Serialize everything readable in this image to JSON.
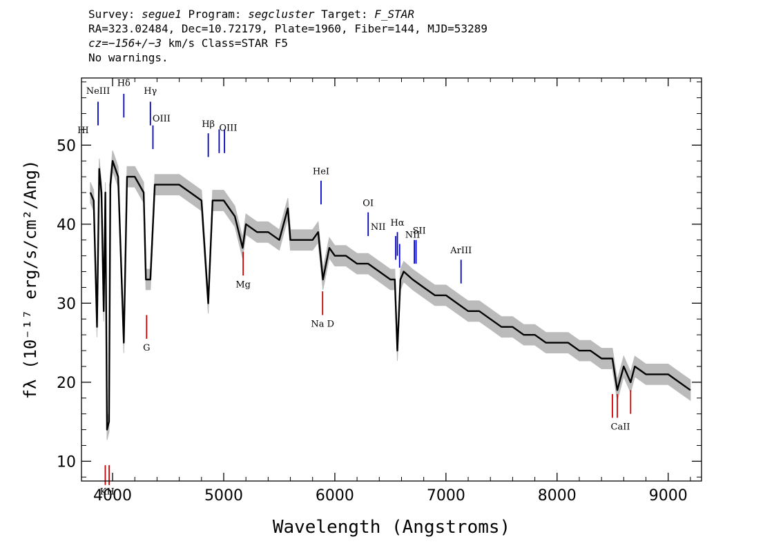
{
  "header": {
    "line1": {
      "survey_label": "Survey: ",
      "survey": "segue1",
      "program_label": " Program: ",
      "program": "segcluster",
      "target_label": " Target: ",
      "target": "F_STAR"
    },
    "line2": "RA=323.02484, Dec=10.72179, Plate=1960, Fiber=144, MJD=53289",
    "line3": {
      "cz_label": "cz=",
      "cz": "−156+/−3",
      "cz_units": " km/s Class=STAR F5"
    },
    "line4": "No warnings."
  },
  "colors": {
    "spectrum": "#000000",
    "error_band": "#bbbbbb",
    "emission_line": "#0000cc",
    "absorption_line": "#cc0000",
    "axes": "#000000"
  },
  "chart_data": {
    "type": "line",
    "title": "",
    "xlabel": "Wavelength (Angstroms)",
    "ylabel": "fλ (10⁻¹⁷ erg/s/cm²/Ang)",
    "xlim": [
      3720,
      9300
    ],
    "ylim": [
      7.5,
      58.5
    ],
    "x_ticks": [
      4000,
      5000,
      6000,
      7000,
      8000,
      9000
    ],
    "y_ticks": [
      10,
      20,
      30,
      40,
      50
    ],
    "grid": false,
    "series": [
      {
        "x": [
          3800,
          3830,
          3860,
          3880,
          3900,
          3920,
          3935,
          3950,
          3968,
          3980,
          4000,
          4050,
          4101,
          4130,
          4200,
          4280,
          4300,
          4340,
          4380,
          4450,
          4600,
          4700,
          4800,
          4861,
          4900,
          5000,
          5100,
          5170,
          5200,
          5300,
          5400,
          5500,
          5577,
          5600,
          5700,
          5800,
          5850,
          5893,
          5950,
          6000,
          6100,
          6200,
          6300,
          6400,
          6500,
          6540,
          6563,
          6590,
          6620,
          6700,
          6800,
          6900,
          7000,
          7100,
          7200,
          7300,
          7400,
          7500,
          7600,
          7700,
          7800,
          7900,
          8000,
          8100,
          8200,
          8300,
          8400,
          8498,
          8542,
          8600,
          8662,
          8700,
          8800,
          8900,
          9000,
          9100,
          9200
        ],
        "y": [
          44,
          43,
          27,
          47,
          44,
          29,
          44,
          14,
          15,
          45,
          48,
          46,
          25,
          46,
          46,
          44,
          33,
          33,
          45,
          45,
          45,
          44,
          43,
          30,
          43,
          43,
          41,
          37,
          40,
          39,
          39,
          38,
          42,
          38,
          38,
          38,
          39,
          33,
          37,
          36,
          36,
          35,
          35,
          34,
          33,
          33,
          24,
          33,
          34,
          33,
          32,
          31,
          31,
          30,
          29,
          29,
          28,
          27,
          27,
          26,
          26,
          25,
          25,
          25,
          24,
          24,
          23,
          23,
          19,
          22,
          20,
          22,
          21,
          21,
          21,
          20,
          19
        ],
        "err": 1.3
      }
    ],
    "emission_lines": [
      {
        "label": "NeIII",
        "x": 3869,
        "y_bottom": 52.5,
        "y_top": 55.5
      },
      {
        "label": "Hδ",
        "x": 4101,
        "y_bottom": 53.5,
        "y_top": 56.5
      },
      {
        "label": "Hγ",
        "x": 4340,
        "y_bottom": 52.5,
        "y_top": 55.5
      },
      {
        "label": "OIII",
        "x": 4363,
        "y_bottom": 49.5,
        "y_top": 52.5
      },
      {
        "label": "Hβ",
        "x": 4861,
        "y_bottom": 48.5,
        "y_top": 51.5
      },
      {
        "label": "OIII",
        "x": 4959,
        "y_bottom": 49.0,
        "y_top": 52.0
      },
      {
        "label": "OIII",
        "x": 5007,
        "y_bottom": 49.0,
        "y_top": 52.0
      },
      {
        "label": "HeI",
        "x": 5876,
        "y_bottom": 42.5,
        "y_top": 45.5
      },
      {
        "label": "OI",
        "x": 6300,
        "y_bottom": 38.5,
        "y_top": 41.5
      },
      {
        "label": "NII",
        "x": 6548,
        "y_bottom": 35.5,
        "y_top": 38.5
      },
      {
        "label": "Hα",
        "x": 6563,
        "y_bottom": 36.0,
        "y_top": 39.0
      },
      {
        "label": "NII",
        "x": 6583,
        "y_bottom": 34.5,
        "y_top": 37.5
      },
      {
        "label": "SII",
        "x": 6716,
        "y_bottom": 35.0,
        "y_top": 38.0
      },
      {
        "label": "SII",
        "x": 6731,
        "y_bottom": 35.0,
        "y_top": 38.0
      },
      {
        "label": "ArIII",
        "x": 7136,
        "y_bottom": 32.5,
        "y_top": 35.5
      }
    ],
    "absorption_lines": [
      {
        "label": "K",
        "x": 3934,
        "y_top": 9.5,
        "y_bottom": 7.0
      },
      {
        "label": "H",
        "x": 3969,
        "y_top": 9.5,
        "y_bottom": 7.0
      },
      {
        "label": "G",
        "x": 4306,
        "y_top": 28.5,
        "y_bottom": 25.5
      },
      {
        "label": "Mg",
        "x": 5175,
        "y_top": 36.5,
        "y_bottom": 33.5
      },
      {
        "label": "Na",
        "x": 5890,
        "y_top": 31.5,
        "y_bottom": 28.5
      },
      {
        "label": "CaII",
        "x": 8498,
        "y_top": 18.5,
        "y_bottom": 15.5
      },
      {
        "label": "CaII",
        "x": 8542,
        "y_top": 18.5,
        "y_bottom": 15.5
      },
      {
        "label": "CaII",
        "x": 8662,
        "y_top": 19.0,
        "y_bottom": 16.0
      }
    ],
    "line_labels": [
      {
        "text": "NeIII",
        "x": 3869,
        "y": 56.5
      },
      {
        "text": "Hδ",
        "x": 4101,
        "y": 57.5
      },
      {
        "text": "Hγ",
        "x": 4340,
        "y": 56.5
      },
      {
        "text": "OIII",
        "x": 4440,
        "y": 53.0
      },
      {
        "text": "Hβ",
        "x": 4861,
        "y": 52.3
      },
      {
        "text": "OIII",
        "x": 5040,
        "y": 51.8
      },
      {
        "text": "HeI",
        "x": 5876,
        "y": 46.3
      },
      {
        "text": "OI",
        "x": 6300,
        "y": 42.3
      },
      {
        "text": "NII",
        "x": 6390,
        "y": 39.3
      },
      {
        "text": "Hα",
        "x": 6563,
        "y": 39.8
      },
      {
        "text": "SII",
        "x": 6760,
        "y": 38.8
      },
      {
        "text": "NII",
        "x": 6700,
        "y": 38.3
      },
      {
        "text": "ArIII",
        "x": 7136,
        "y": 36.3
      },
      {
        "text": "HI",
        "x": 3735,
        "y": 51.5
      },
      {
        "text": "G",
        "x": 4306,
        "y": 24.0
      },
      {
        "text": "Mg",
        "x": 5175,
        "y": 32.0
      },
      {
        "text": "Na  D",
        "x": 5890,
        "y": 27.0
      },
      {
        "text": "CaII",
        "x": 8570,
        "y": 14.0
      },
      {
        "text": "KH",
        "x": 3952,
        "y": 5.8
      }
    ]
  }
}
